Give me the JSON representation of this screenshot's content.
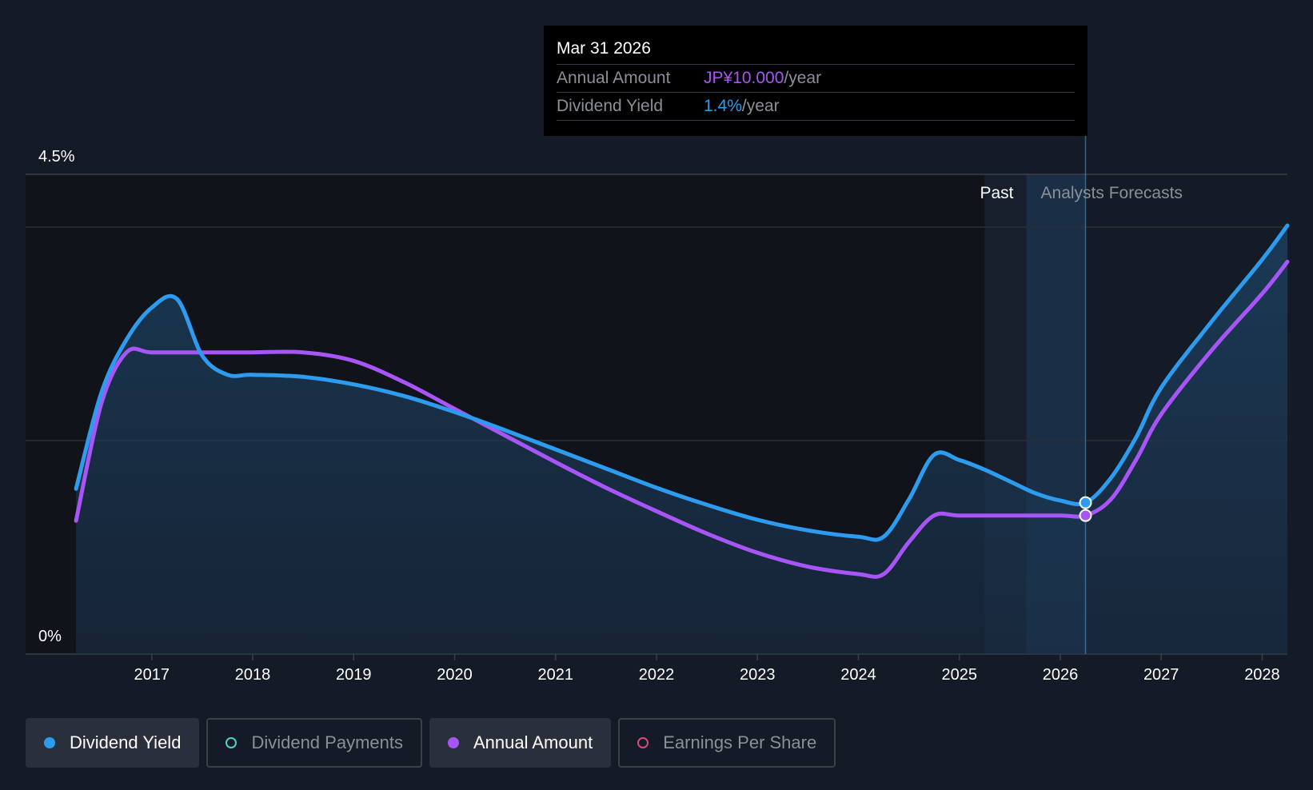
{
  "tooltip": {
    "date": "Mar 31 2026",
    "rows": [
      {
        "label": "Annual Amount",
        "value": "JP¥10.000",
        "unit": "/year"
      },
      {
        "label": "Dividend Yield",
        "value": "1.4%",
        "unit": "/year"
      }
    ]
  },
  "legend": [
    {
      "label": "Dividend Yield",
      "color": "#2d9cef",
      "active": true
    },
    {
      "label": "Dividend Payments",
      "color": "#4fd1c5",
      "active": false
    },
    {
      "label": "Annual Amount",
      "color": "#a855f7",
      "active": true
    },
    {
      "label": "Earnings Per Share",
      "color": "#d9487d",
      "active": false
    }
  ],
  "chart_data": {
    "type": "line",
    "ylim": [
      0,
      4.5
    ],
    "y_tick_labels": [
      "4.5%",
      "0%"
    ],
    "x_range": [
      2015.75,
      2028.25
    ],
    "x_tick_labels": [
      "2017",
      "2018",
      "2019",
      "2020",
      "2021",
      "2022",
      "2023",
      "2024",
      "2025",
      "2026",
      "2027",
      "2028"
    ],
    "past_label": "Past",
    "forecast_label": "Analysts Forecasts",
    "forecast_start": 2025.25,
    "highlight_x": 2026.25,
    "series": [
      {
        "name": "Dividend Yield",
        "color": "#2d9cef",
        "x": [
          2016.25,
          2016.5,
          2016.75,
          2017.0,
          2017.25,
          2017.5,
          2017.75,
          2018.0,
          2018.5,
          2019.0,
          2019.5,
          2020.0,
          2020.5,
          2021.0,
          2021.5,
          2022.0,
          2022.5,
          2023.0,
          2023.5,
          2024.0,
          2024.25,
          2024.5,
          2024.75,
          2025.0,
          2025.25,
          2025.5,
          2025.75,
          2026.0,
          2026.25,
          2026.5,
          2026.75,
          2027.0,
          2027.5,
          2028.0,
          2028.25
        ],
        "y": [
          1.55,
          2.45,
          2.95,
          3.25,
          3.33,
          2.8,
          2.62,
          2.62,
          2.6,
          2.53,
          2.42,
          2.27,
          2.1,
          1.92,
          1.74,
          1.56,
          1.4,
          1.26,
          1.16,
          1.1,
          1.1,
          1.45,
          1.87,
          1.82,
          1.73,
          1.62,
          1.51,
          1.44,
          1.42,
          1.65,
          2.03,
          2.5,
          3.12,
          3.7,
          4.02
        ]
      },
      {
        "name": "Annual Amount",
        "color": "#a855f7",
        "x": [
          2016.25,
          2016.5,
          2016.75,
          2017.0,
          2017.5,
          2018.0,
          2018.5,
          2019.0,
          2019.5,
          2020.0,
          2020.5,
          2021.0,
          2021.5,
          2022.0,
          2022.5,
          2023.0,
          2023.5,
          2024.0,
          2024.25,
          2024.5,
          2024.75,
          2025.0,
          2025.5,
          2026.0,
          2026.25,
          2026.5,
          2026.75,
          2027.0,
          2027.5,
          2028.0,
          2028.25
        ],
        "y": [
          1.25,
          2.35,
          2.83,
          2.83,
          2.83,
          2.83,
          2.83,
          2.75,
          2.55,
          2.3,
          2.05,
          1.8,
          1.56,
          1.34,
          1.13,
          0.95,
          0.82,
          0.75,
          0.75,
          1.05,
          1.3,
          1.3,
          1.3,
          1.3,
          1.3,
          1.45,
          1.82,
          2.25,
          2.85,
          3.38,
          3.68
        ]
      }
    ]
  }
}
